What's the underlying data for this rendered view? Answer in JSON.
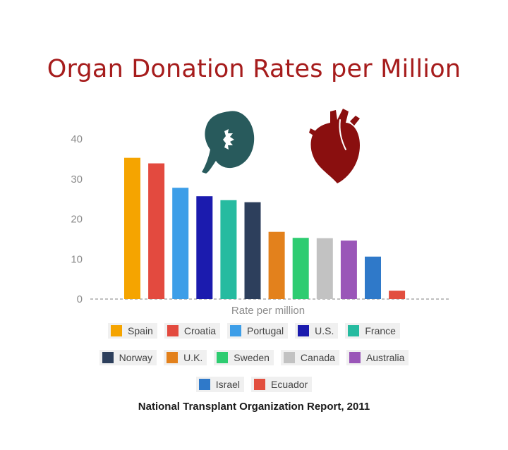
{
  "title": "Organ Donation Rates per Million",
  "source": "National Transplant Organization Report, 2011",
  "icons": {
    "kidney": "kidney-icon",
    "heart": "heart-icon"
  },
  "colors": {
    "title": "#a61c1c",
    "kidney": "#285a5c",
    "heart": "#8a0f0f"
  },
  "chart_data": {
    "type": "bar",
    "title": "Organ Donation Rates per Million",
    "xlabel": "Rate per million",
    "ylabel": "",
    "ylim": [
      0,
      40
    ],
    "yticks": [
      0,
      10,
      20,
      30,
      40
    ],
    "grid": false,
    "legend_position": "bottom",
    "categories": [
      "Spain",
      "Croatia",
      "Portugal",
      "U.S.",
      "France",
      "Norway",
      "U.K.",
      "Sweden",
      "Canada",
      "Australia",
      "Israel",
      "Ecuador"
    ],
    "values": [
      35.3,
      33.9,
      27.8,
      25.7,
      24.7,
      24.2,
      16.8,
      15.3,
      15.2,
      14.6,
      10.6,
      2.1
    ],
    "colors": [
      "#f5a400",
      "#e34a3f",
      "#3d9ee8",
      "#1b1bae",
      "#26bba0",
      "#2d3f5c",
      "#e3811c",
      "#2ecc71",
      "#c2c2c2",
      "#9a56b8",
      "#2f79c9",
      "#e24f3f"
    ]
  }
}
